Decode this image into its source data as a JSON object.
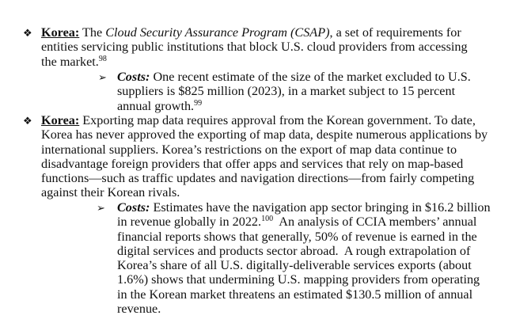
{
  "items": [
    {
      "bullet": "❖",
      "label": "Korea:",
      "text_pre": " The ",
      "text_italic": "Cloud Security Assurance Program (CSAP)",
      "text_post": ", a set of requirements for entities servicing public institutions that block U.S. cloud providers from accessing the market.",
      "footnote": "98",
      "sub": {
        "bullet": "➢",
        "label": "Costs:",
        "text": " One recent estimate of the size of the market excluded to U.S. suppliers is $825 million (2023), in a market subject to 15 percent annual growth.",
        "footnote": "99"
      }
    },
    {
      "bullet": "❖",
      "label": "Korea:",
      "text": " Exporting map data requires approval from the Korean government. To date, Korea has never approved the exporting of map data, despite numerous applications by international suppliers. Korea’s restrictions on the export of map data continue to disadvantage foreign providers that offer apps and services that rely on map-based functions—such as traffic updates and navigation directions—from fairly competing against their Korean rivals.",
      "sub": {
        "bullet": "➢",
        "label": "Costs:",
        "text_a": " Estimates have the navigation app sector bringing in $16.2 billion in revenue globally in 2022.",
        "footnote": "100",
        "text_b": "  An analysis of CCIA members’ annual financial reports shows that generally, 50% of revenue is earned in the digital services and products sector abroad.  A rough extrapolation of Korea’s share of all U.S. digitally-deliverable services exports (about 1.6%) shows that undermining U.S. mapping providers from operating in the Korean market threatens an estimated $130.5 million of annual revenue."
      }
    }
  ]
}
